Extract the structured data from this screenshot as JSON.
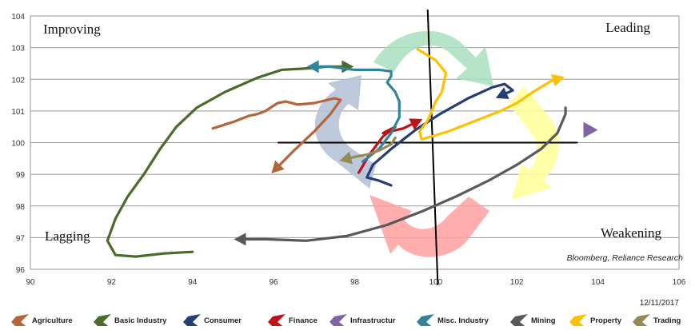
{
  "chart_data": {
    "type": "line",
    "subtype": "relative-rotation-graph",
    "xlim": [
      90,
      106
    ],
    "ylim": [
      96,
      104
    ],
    "x_ticks": [
      "90",
      "92",
      "94",
      "96",
      "98",
      "100",
      "102",
      "104",
      "106"
    ],
    "y_ticks": [
      "96",
      "97",
      "98",
      "99",
      "100",
      "101",
      "102",
      "103",
      "104"
    ],
    "grid": "horizontal",
    "quadrants": {
      "top_left": "Improving",
      "top_right": "Leading",
      "bottom_left": "Lagging",
      "bottom_right": "Weakening"
    },
    "source_note": "Bloomberg, Reliance Research",
    "date": "12/11/2017",
    "legend_position": "bottom",
    "series": [
      {
        "name": "Agriculture",
        "color": "#B5653A",
        "points": [
          [
            94.5,
            100.45
          ],
          [
            95.0,
            100.65
          ],
          [
            95.4,
            100.85
          ],
          [
            95.6,
            100.9
          ],
          [
            95.8,
            101.0
          ],
          [
            96.1,
            101.25
          ],
          [
            96.3,
            101.3
          ],
          [
            96.6,
            101.2
          ],
          [
            97.0,
            101.25
          ],
          [
            97.5,
            101.4
          ],
          [
            97.65,
            101.35
          ],
          [
            97.4,
            100.9
          ],
          [
            97.0,
            100.35
          ],
          [
            96.5,
            99.75
          ],
          [
            96.0,
            99.1
          ]
        ]
      },
      {
        "name": "Basic Industry",
        "color": "#4B6B2B",
        "points": [
          [
            94.0,
            96.55
          ],
          [
            93.3,
            96.5
          ],
          [
            92.6,
            96.4
          ],
          [
            92.1,
            96.45
          ],
          [
            91.9,
            96.9
          ],
          [
            92.1,
            97.6
          ],
          [
            92.4,
            98.3
          ],
          [
            92.8,
            99.0
          ],
          [
            93.2,
            99.8
          ],
          [
            93.6,
            100.5
          ],
          [
            94.1,
            101.1
          ],
          [
            94.8,
            101.6
          ],
          [
            95.6,
            102.05
          ],
          [
            96.2,
            102.3
          ],
          [
            96.9,
            102.35
          ],
          [
            97.3,
            102.4
          ],
          [
            97.9,
            102.4
          ]
        ]
      },
      {
        "name": "Consumer",
        "color": "#243F73",
        "points": [
          [
            98.9,
            98.65
          ],
          [
            98.6,
            98.8
          ],
          [
            98.3,
            98.9
          ],
          [
            98.45,
            99.3
          ],
          [
            98.9,
            99.8
          ],
          [
            99.5,
            100.4
          ],
          [
            100.1,
            100.9
          ],
          [
            100.8,
            101.4
          ],
          [
            101.4,
            101.75
          ],
          [
            101.7,
            101.85
          ],
          [
            101.9,
            101.65
          ],
          [
            101.55,
            101.45
          ]
        ]
      },
      {
        "name": "Finance",
        "color": "#C0101A",
        "points": [
          [
            98.1,
            99.05
          ],
          [
            98.35,
            99.6
          ],
          [
            98.7,
            100.2
          ],
          [
            99.0,
            100.5
          ],
          [
            98.7,
            100.3
          ],
          [
            99.2,
            100.45
          ],
          [
            99.6,
            100.7
          ]
        ]
      },
      {
        "name": "Infrastructur",
        "color": "#8064A2",
        "points": [
          [
            103.8,
            100.4
          ]
        ]
      },
      {
        "name": "Misc. Industry",
        "color": "#31849B",
        "points": [
          [
            98.2,
            99.4
          ],
          [
            98.6,
            99.8
          ],
          [
            98.9,
            100.3
          ],
          [
            99.1,
            100.8
          ],
          [
            99.1,
            101.3
          ],
          [
            99.0,
            101.6
          ],
          [
            98.8,
            101.9
          ],
          [
            98.9,
            102.1
          ],
          [
            98.9,
            102.25
          ],
          [
            98.6,
            102.3
          ],
          [
            98.0,
            102.3
          ],
          [
            97.4,
            102.4
          ],
          [
            96.9,
            102.4
          ]
        ]
      },
      {
        "name": "Mining",
        "color": "#595959",
        "points": [
          [
            103.2,
            101.1
          ],
          [
            103.2,
            100.9
          ],
          [
            103.0,
            100.3
          ],
          [
            102.6,
            99.8
          ],
          [
            102.0,
            99.3
          ],
          [
            101.3,
            98.8
          ],
          [
            100.5,
            98.3
          ],
          [
            99.7,
            97.85
          ],
          [
            98.8,
            97.4
          ],
          [
            97.8,
            97.05
          ],
          [
            96.8,
            96.9
          ],
          [
            95.8,
            96.95
          ],
          [
            95.1,
            96.95
          ]
        ]
      },
      {
        "name": "Property",
        "color": "#FFC000",
        "points": [
          [
            99.55,
            102.95
          ],
          [
            100.0,
            102.6
          ],
          [
            100.25,
            102.2
          ],
          [
            100.15,
            101.6
          ],
          [
            100.0,
            101.3
          ],
          [
            99.8,
            100.7
          ],
          [
            99.6,
            100.35
          ],
          [
            99.65,
            100.1
          ],
          [
            100.3,
            100.35
          ],
          [
            101.0,
            100.7
          ],
          [
            101.6,
            101.0
          ],
          [
            102.0,
            101.25
          ],
          [
            102.4,
            101.6
          ],
          [
            102.85,
            101.95
          ],
          [
            103.1,
            102.05
          ]
        ]
      },
      {
        "name": "Trading",
        "color": "#948A54",
        "points": [
          [
            99.0,
            100.15
          ],
          [
            98.9,
            99.95
          ],
          [
            98.6,
            99.75
          ],
          [
            98.3,
            99.62
          ],
          [
            98.0,
            99.55
          ],
          [
            97.7,
            99.45
          ]
        ]
      }
    ]
  }
}
